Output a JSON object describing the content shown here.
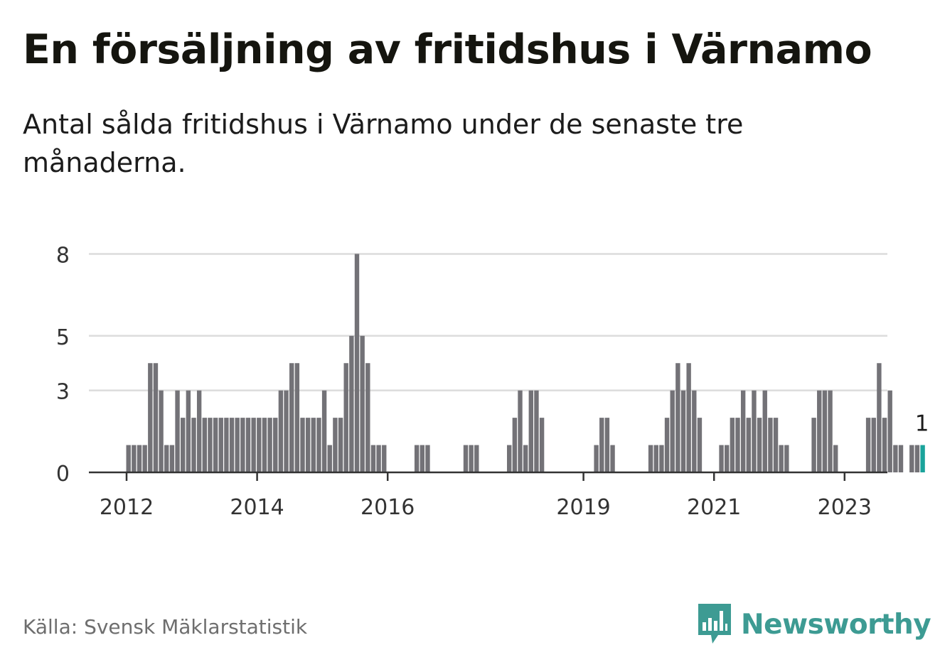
{
  "header": {
    "title": "En försäljning av fritidshus i Värnamo",
    "subtitle": "Antal sålda fritidshus i Värnamo under de senaste tre månaderna."
  },
  "footer": {
    "source": "Källa: Svensk Mäklarstatistik",
    "brand": "Newsworthy",
    "brand_icon": "bar-chart-speech-bubble-icon"
  },
  "colors": {
    "bar": "#737277",
    "highlight": "#1aa39b",
    "grid": "#dcdcdc",
    "axis": "#333333",
    "brand": "#3d9b93"
  },
  "chart_data": {
    "type": "bar",
    "ylim": [
      0,
      9
    ],
    "yticks": [
      0,
      3,
      5,
      8
    ],
    "xticks": [
      "2012",
      "2014",
      "2016",
      "2019",
      "2021",
      "2023"
    ],
    "grid": true,
    "highlight_label": "1",
    "series": [
      {
        "values": [
          1,
          1,
          1,
          1,
          4,
          4,
          3,
          1,
          1,
          3,
          2,
          3,
          2,
          3,
          2,
          2,
          2,
          2,
          2,
          2,
          2,
          2,
          2,
          2,
          2,
          2,
          2,
          2,
          3,
          3,
          4,
          4,
          2,
          2,
          2,
          2,
          3,
          1,
          2,
          2,
          4,
          5,
          8,
          5,
          4,
          1,
          1,
          1,
          0,
          0,
          0,
          0,
          0,
          1,
          1,
          1,
          0,
          0,
          0,
          0,
          0,
          0,
          1,
          1,
          1,
          0,
          0,
          0,
          0,
          0,
          1,
          2,
          3,
          1,
          3,
          3,
          2,
          0,
          0,
          0,
          0,
          0,
          0,
          0,
          0,
          0,
          1,
          2,
          2,
          1,
          0,
          0,
          0,
          0,
          0,
          0,
          1,
          1,
          1,
          2,
          3,
          4,
          3,
          4,
          3,
          2,
          0,
          0,
          0,
          1,
          1,
          2,
          2,
          3,
          2,
          3,
          2,
          3,
          2,
          2,
          1,
          1,
          0,
          0,
          0,
          0,
          2,
          3,
          3,
          3,
          1,
          0,
          0,
          0,
          0,
          0,
          2,
          2,
          4,
          2,
          3,
          1,
          1,
          0,
          1,
          1,
          1
        ]
      }
    ]
  }
}
